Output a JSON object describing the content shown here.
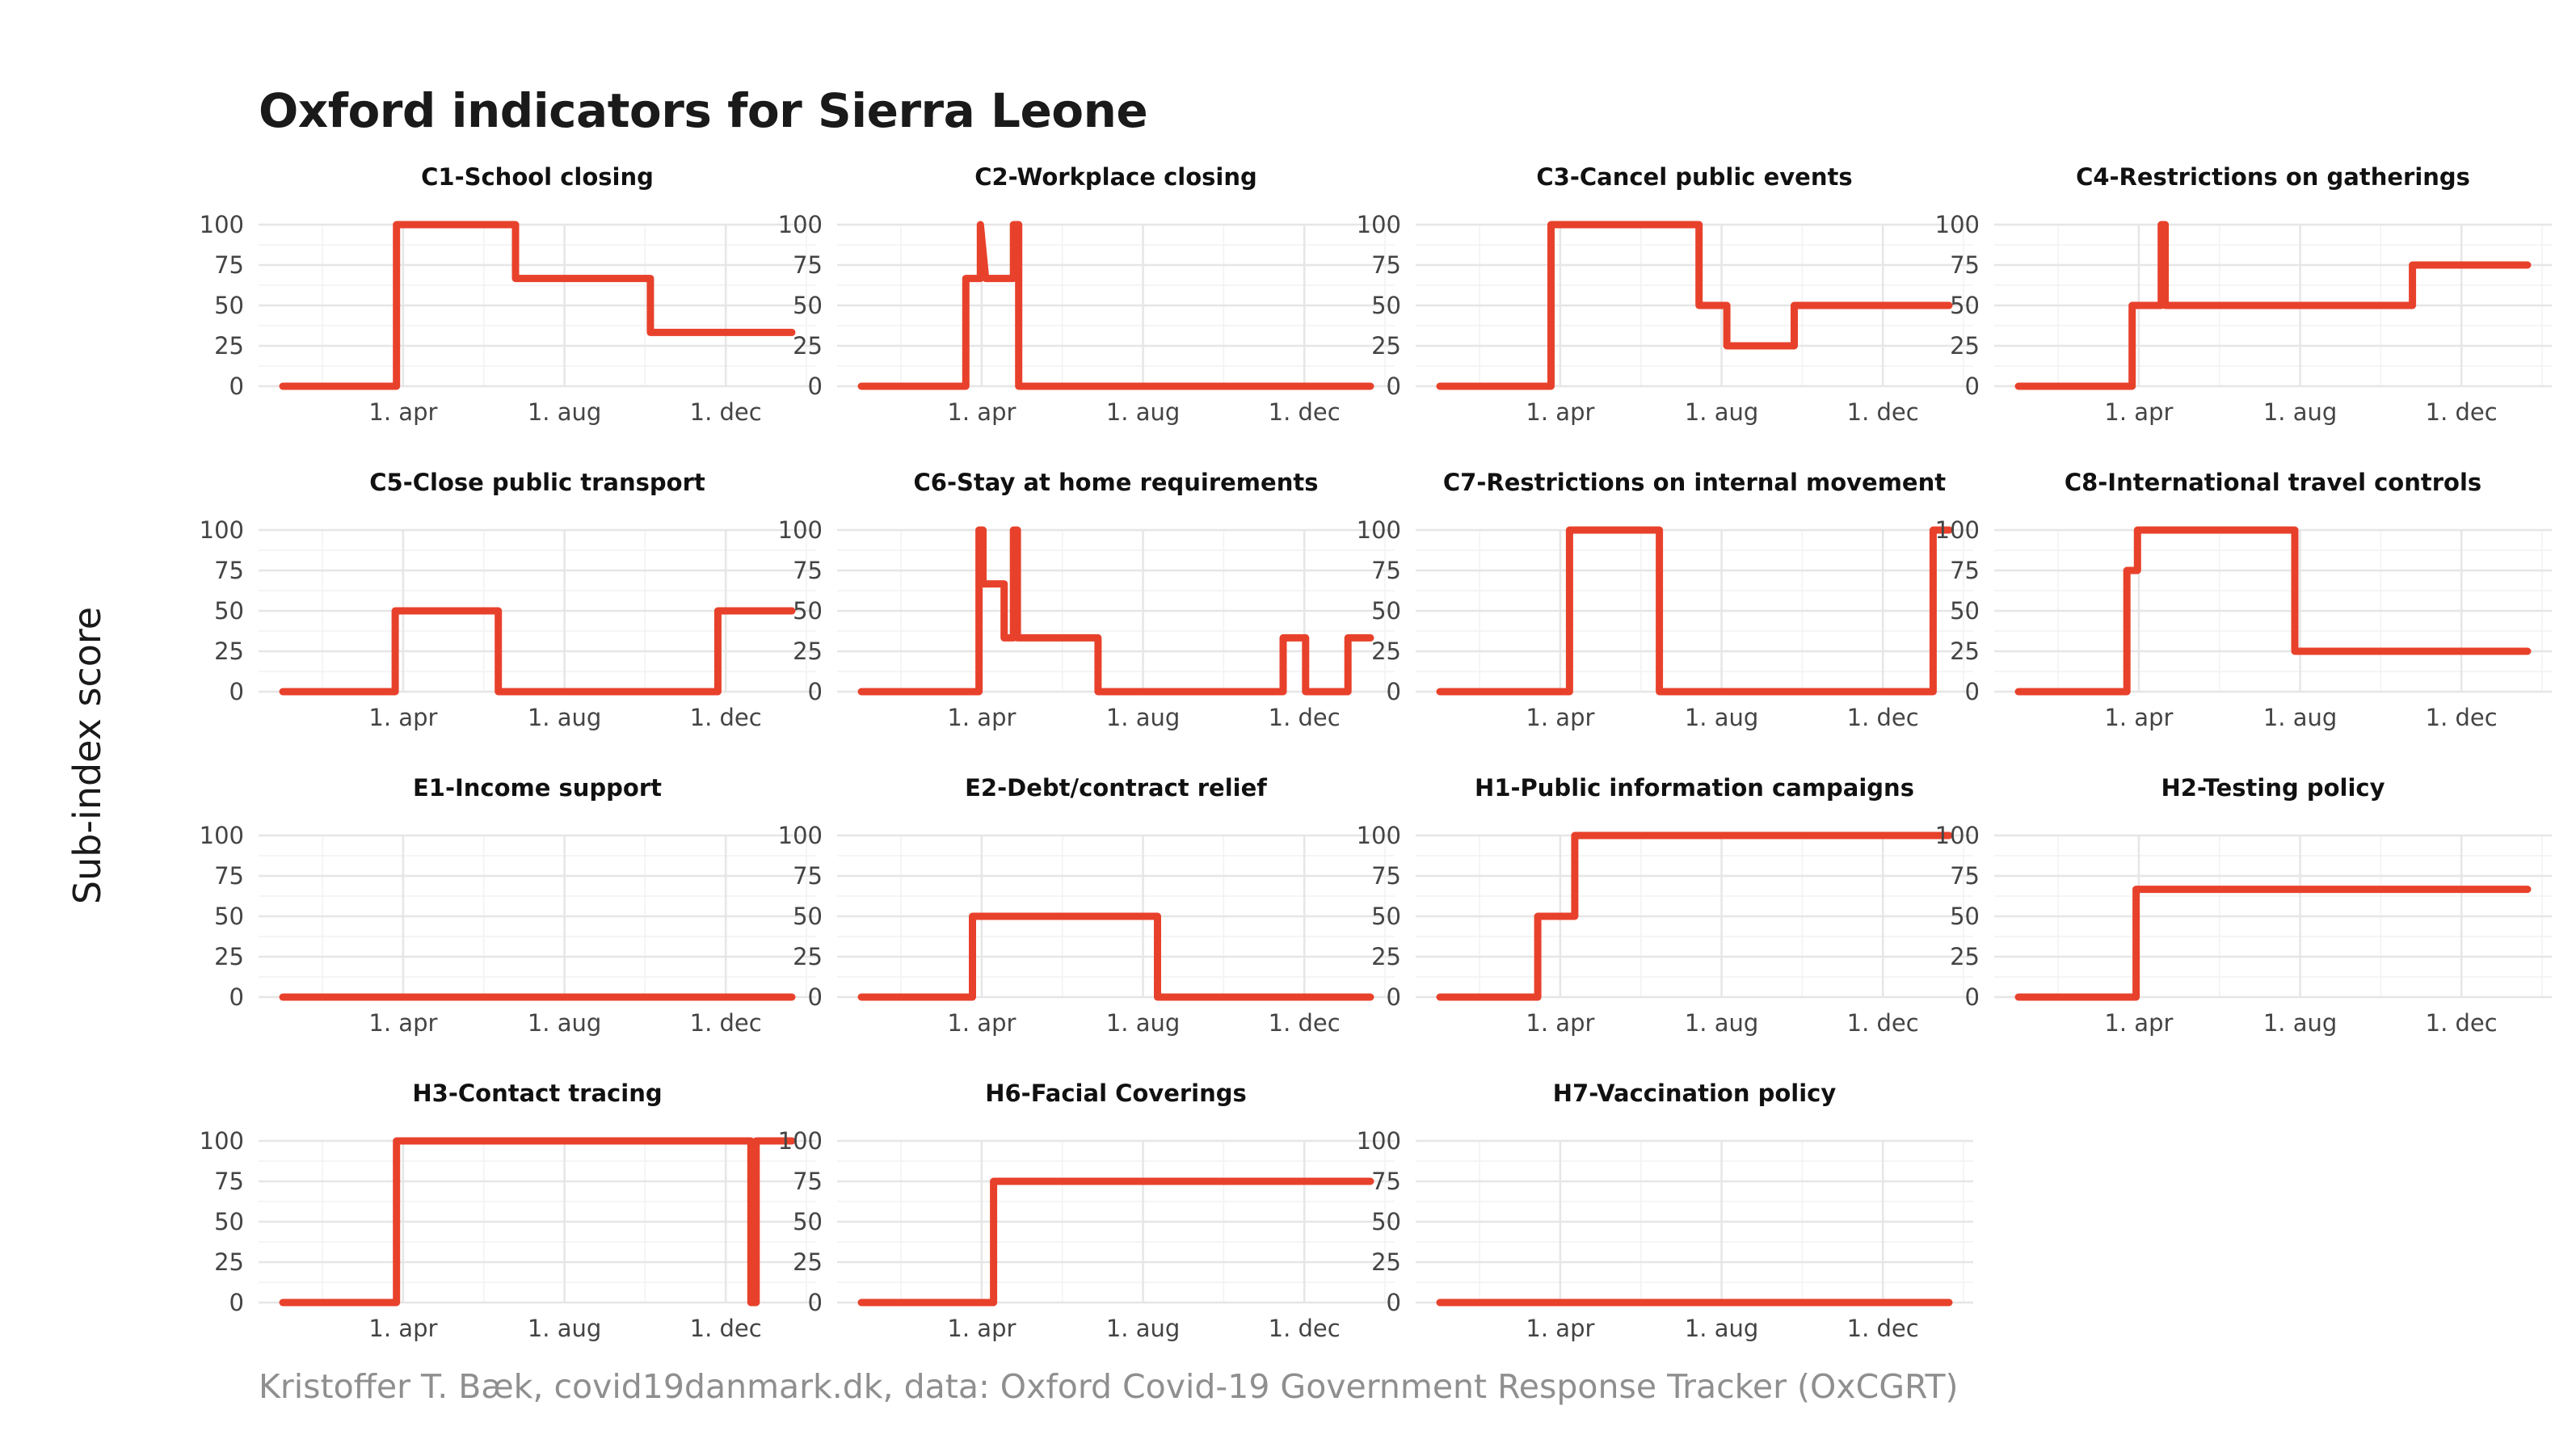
{
  "title": "Oxford indicators for Sierra Leone",
  "caption": "Kristoffer T. Bæk, covid19danmark.dk, data: Oxford Covid-19 Government Response Tracker (OxCGRT)",
  "colors": {
    "line": "#e8412b",
    "grid": "#e6e6e6",
    "caption": "#8f8f8f"
  },
  "chart_data": {
    "type": "line",
    "title": "Oxford indicators for Sierra Leone",
    "ylabel": "Sub-index score",
    "xlabel": "",
    "ylim": [
      0,
      100
    ],
    "y_ticks": [
      0,
      25,
      50,
      75,
      100
    ],
    "x_range": [
      "2020-01-01",
      "2021-01-20"
    ],
    "x_ticks": [
      {
        "date": "2020-04-01",
        "label": "1. apr"
      },
      {
        "date": "2020-08-01",
        "label": "1. aug"
      },
      {
        "date": "2020-12-01",
        "label": "1. dec"
      }
    ],
    "grid": true,
    "layout": {
      "columns": 4,
      "rows": 4
    },
    "facets": [
      {
        "title": "C1-School closing",
        "x": [
          "2020-01-01",
          "2020-03-27",
          "2020-03-27",
          "2020-06-25",
          "2020-06-25",
          "2020-10-05",
          "2020-10-05",
          "2021-01-20"
        ],
        "y": [
          0,
          0,
          100,
          100,
          66.7,
          66.7,
          33.3,
          33.3
        ]
      },
      {
        "title": "C2-Workplace closing",
        "x": [
          "2020-01-01",
          "2020-03-20",
          "2020-03-20",
          "2020-03-31",
          "2020-03-31",
          "2020-04-04",
          "2020-04-04",
          "2020-04-25",
          "2020-04-25",
          "2020-04-29",
          "2020-04-29",
          "2021-01-20"
        ],
        "y": [
          0,
          0,
          66.7,
          66.7,
          100,
          66.7,
          66.7,
          66.7,
          100,
          100,
          0,
          0
        ]
      },
      {
        "title": "C3-Cancel public events",
        "x": [
          "2020-01-01",
          "2020-03-25",
          "2020-03-25",
          "2020-07-15",
          "2020-07-15",
          "2020-08-05",
          "2020-08-05",
          "2020-09-25",
          "2020-09-25",
          "2021-01-20"
        ],
        "y": [
          0,
          0,
          100,
          100,
          50,
          50,
          25,
          25,
          50,
          50
        ]
      },
      {
        "title": "C4-Restrictions on gatherings",
        "x": [
          "2020-01-01",
          "2020-03-27",
          "2020-03-27",
          "2020-04-18",
          "2020-04-18",
          "2020-04-21",
          "2020-04-21",
          "2020-10-25",
          "2020-10-25",
          "2021-01-20"
        ],
        "y": [
          0,
          0,
          50,
          50,
          100,
          100,
          50,
          50,
          75,
          75
        ]
      },
      {
        "title": "C5-Close public transport",
        "x": [
          "2020-01-01",
          "2020-03-26",
          "2020-03-26",
          "2020-06-12",
          "2020-06-12",
          "2020-11-25",
          "2020-11-25",
          "2021-01-20"
        ],
        "y": [
          0,
          0,
          50,
          50,
          0,
          0,
          50,
          50
        ]
      },
      {
        "title": "C6-Stay at home requirements",
        "x": [
          "2020-01-01",
          "2020-03-30",
          "2020-03-30",
          "2020-04-02",
          "2020-04-02",
          "2020-04-18",
          "2020-04-18",
          "2020-04-25",
          "2020-04-25",
          "2020-04-28",
          "2020-04-28",
          "2020-06-28",
          "2020-06-28",
          "2020-11-15",
          "2020-11-15",
          "2020-12-02",
          "2020-12-02",
          "2021-01-03",
          "2021-01-03",
          "2021-01-20"
        ],
        "y": [
          0,
          0,
          100,
          100,
          66.7,
          66.7,
          33.3,
          33.3,
          100,
          100,
          33.3,
          33.3,
          0,
          0,
          33.3,
          33.3,
          0,
          0,
          33.3,
          33.3
        ]
      },
      {
        "title": "C7-Restrictions on internal movement",
        "x": [
          "2020-01-01",
          "2020-04-08",
          "2020-04-08",
          "2020-06-15",
          "2020-06-15",
          "2021-01-08",
          "2021-01-08",
          "2021-01-20"
        ],
        "y": [
          0,
          0,
          100,
          100,
          0,
          0,
          100,
          100
        ]
      },
      {
        "title": "C8-International travel controls",
        "x": [
          "2020-01-01",
          "2020-03-23",
          "2020-03-23",
          "2020-03-31",
          "2020-03-31",
          "2020-07-28",
          "2020-07-28",
          "2021-01-20"
        ],
        "y": [
          0,
          0,
          75,
          75,
          100,
          100,
          25,
          25
        ]
      },
      {
        "title": "E1-Income support",
        "x": [
          "2020-01-01",
          "2021-01-20"
        ],
        "y": [
          0,
          0
        ]
      },
      {
        "title": "E2-Debt/contract relief",
        "x": [
          "2020-01-01",
          "2020-03-25",
          "2020-03-25",
          "2020-08-12",
          "2020-08-12",
          "2021-01-20"
        ],
        "y": [
          0,
          0,
          50,
          50,
          0,
          0
        ]
      },
      {
        "title": "H1-Public information campaigns",
        "x": [
          "2020-01-01",
          "2020-03-15",
          "2020-03-15",
          "2020-04-12",
          "2020-04-12",
          "2021-01-20"
        ],
        "y": [
          0,
          0,
          50,
          50,
          100,
          100
        ]
      },
      {
        "title": "H2-Testing policy",
        "x": [
          "2020-01-01",
          "2020-03-30",
          "2020-03-30",
          "2021-01-20"
        ],
        "y": [
          0,
          0,
          66.7,
          66.7
        ]
      },
      {
        "title": "H3-Contact tracing",
        "x": [
          "2020-01-01",
          "2020-03-27",
          "2020-03-27",
          "2020-12-20",
          "2020-12-20",
          "2020-12-24",
          "2020-12-24",
          "2021-01-20"
        ],
        "y": [
          0,
          0,
          100,
          100,
          0,
          0,
          100,
          100
        ]
      },
      {
        "title": "H6-Facial Coverings",
        "x": [
          "2020-01-01",
          "2020-04-10",
          "2020-04-10",
          "2021-01-20"
        ],
        "y": [
          0,
          0,
          75,
          75
        ]
      },
      {
        "title": "H7-Vaccination policy",
        "x": [
          "2020-01-01",
          "2021-01-20"
        ],
        "y": [
          0,
          0
        ]
      }
    ]
  }
}
